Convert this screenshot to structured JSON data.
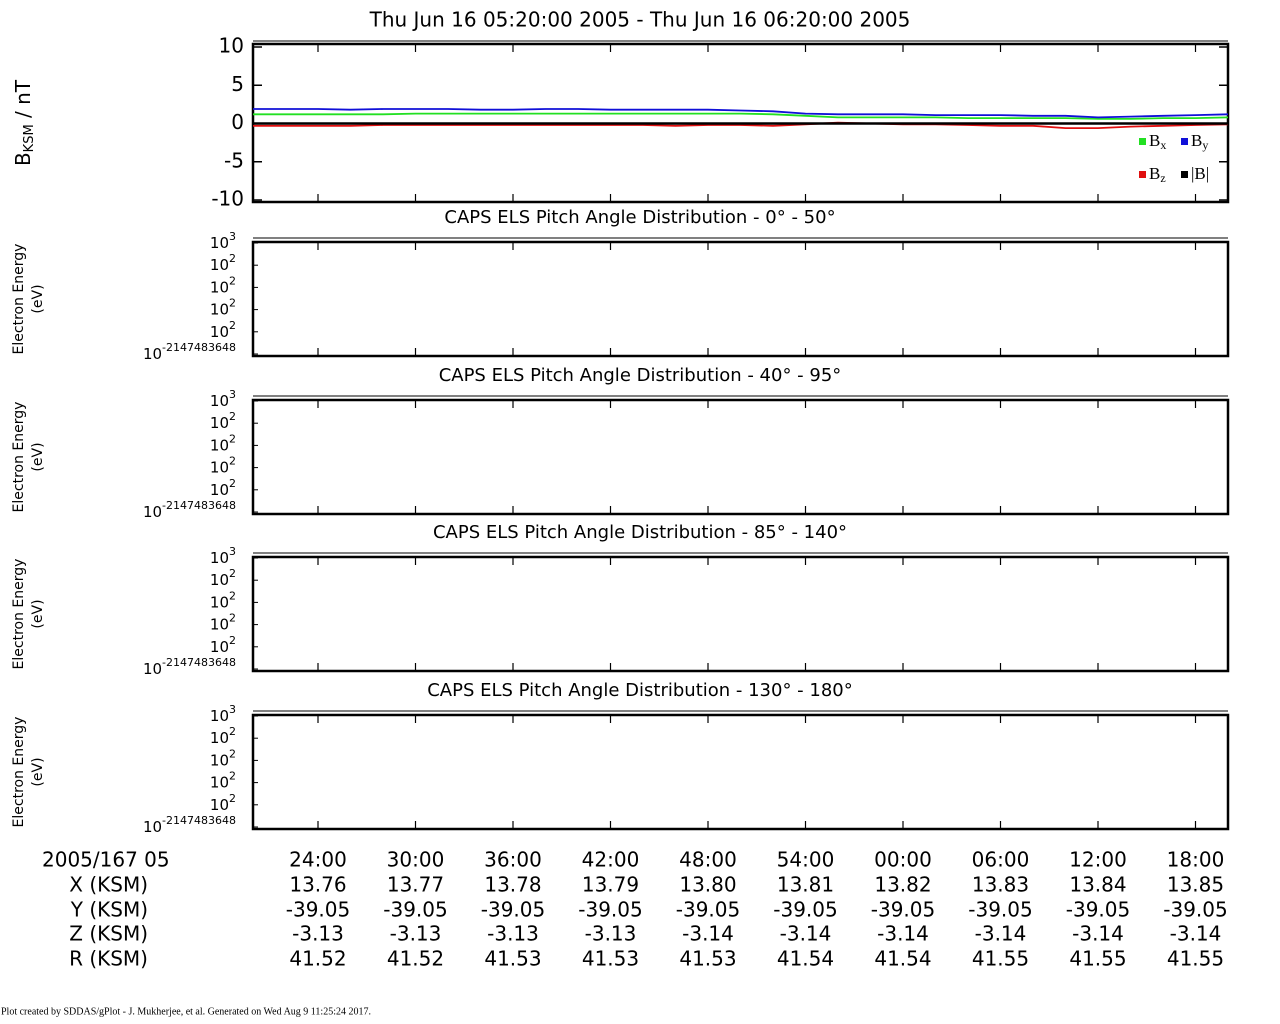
{
  "chart_data": {
    "type": "line",
    "title": "Thu Jun 16 05:20:00 2005 - Thu Jun 16 06:20:00 2005",
    "ylabel": {
      "main": "B",
      "sub": "KSM",
      "unit": " / nT"
    },
    "xlim": [
      20,
      80
    ],
    "xticks": [
      {
        "value": 24,
        "label": "24:00"
      },
      {
        "value": 30,
        "label": "30:00"
      },
      {
        "value": 36,
        "label": "36:00"
      },
      {
        "value": 42,
        "label": "42:00"
      },
      {
        "value": 48,
        "label": "48:00"
      },
      {
        "value": 54,
        "label": "54:00"
      },
      {
        "value": 60,
        "label": "00:00"
      },
      {
        "value": 66,
        "label": "06:00"
      },
      {
        "value": 72,
        "label": "12:00"
      },
      {
        "value": 78,
        "label": "18:00"
      }
    ],
    "ylim": [
      -10,
      10
    ],
    "yticks": [
      -10,
      -5,
      0,
      5,
      10
    ],
    "legend": "lower right",
    "x": [
      20,
      22,
      24,
      26,
      28,
      30,
      32,
      34,
      36,
      38,
      40,
      42,
      44,
      46,
      48,
      50,
      52,
      54,
      56,
      58,
      60,
      62,
      64,
      66,
      68,
      70,
      72,
      74,
      76,
      78,
      80
    ],
    "series": [
      {
        "name": "B",
        "sub": "x",
        "color": "#22e022",
        "values": [
          1.2,
          1.2,
          1.2,
          1.2,
          1.2,
          1.3,
          1.3,
          1.3,
          1.3,
          1.3,
          1.3,
          1.3,
          1.3,
          1.3,
          1.3,
          1.3,
          1.2,
          1.0,
          0.8,
          0.8,
          0.8,
          0.8,
          0.7,
          0.7,
          0.7,
          0.7,
          0.6,
          0.6,
          0.7,
          0.7,
          0.8
        ]
      },
      {
        "name": "B",
        "sub": "y",
        "color": "#1010d8",
        "values": [
          1.9,
          1.9,
          1.9,
          1.8,
          1.9,
          1.9,
          1.9,
          1.8,
          1.8,
          1.9,
          1.9,
          1.8,
          1.8,
          1.8,
          1.8,
          1.7,
          1.6,
          1.3,
          1.2,
          1.2,
          1.2,
          1.1,
          1.1,
          1.1,
          1.0,
          1.0,
          0.8,
          0.9,
          1.0,
          1.1,
          1.2
        ]
      },
      {
        "name": "B",
        "sub": "z",
        "color": "#e01010",
        "values": [
          -0.3,
          -0.3,
          -0.3,
          -0.3,
          -0.2,
          -0.2,
          -0.2,
          -0.2,
          -0.2,
          -0.2,
          -0.2,
          -0.2,
          -0.2,
          -0.3,
          -0.2,
          -0.2,
          -0.3,
          -0.1,
          0.1,
          0.0,
          -0.1,
          -0.1,
          -0.2,
          -0.3,
          -0.3,
          -0.6,
          -0.6,
          -0.4,
          -0.3,
          -0.2,
          -0.1
        ]
      },
      {
        "name": "|B|",
        "color": "#000000",
        "values": [
          0,
          0,
          0,
          0,
          0,
          0,
          0,
          0,
          0,
          0,
          0,
          0,
          0,
          0,
          0,
          0,
          0,
          0,
          0,
          0,
          0,
          0,
          0,
          0,
          0,
          0,
          0,
          0,
          0,
          0,
          0
        ]
      }
    ],
    "panels": [
      {
        "title": "CAPS ELS Pitch Angle Distribution - 0° - 50°",
        "ylabel": [
          "Electron Energy",
          "(eV)"
        ],
        "ytick_labels": [
          {
            "base": "10",
            "exp": "3"
          },
          {
            "base": "10",
            "exp": "2"
          },
          {
            "base": "10",
            "exp": "2"
          },
          {
            "base": "10",
            "exp": "2"
          },
          {
            "base": "10",
            "exp": "2"
          },
          {
            "base": "10",
            "exp": "-2147483648"
          }
        ]
      },
      {
        "title": "CAPS ELS Pitch Angle Distribution - 40° - 95°",
        "ylabel": [
          "Electron Energy",
          "(eV)"
        ],
        "ytick_labels": [
          {
            "base": "10",
            "exp": "3"
          },
          {
            "base": "10",
            "exp": "2"
          },
          {
            "base": "10",
            "exp": "2"
          },
          {
            "base": "10",
            "exp": "2"
          },
          {
            "base": "10",
            "exp": "2"
          },
          {
            "base": "10",
            "exp": "-2147483648"
          }
        ]
      },
      {
        "title": "CAPS ELS Pitch Angle Distribution - 85° - 140°",
        "ylabel": [
          "Electron Energy",
          "(eV)"
        ],
        "ytick_labels": [
          {
            "base": "10",
            "exp": "3"
          },
          {
            "base": "10",
            "exp": "2"
          },
          {
            "base": "10",
            "exp": "2"
          },
          {
            "base": "10",
            "exp": "2"
          },
          {
            "base": "10",
            "exp": "2"
          },
          {
            "base": "10",
            "exp": "-2147483648"
          }
        ]
      },
      {
        "title": "CAPS ELS Pitch Angle Distribution - 130° - 180°",
        "ylabel": [
          "Electron Energy",
          "(eV)"
        ],
        "ytick_labels": [
          {
            "base": "10",
            "exp": "3"
          },
          {
            "base": "10",
            "exp": "2"
          },
          {
            "base": "10",
            "exp": "2"
          },
          {
            "base": "10",
            "exp": "2"
          },
          {
            "base": "10",
            "exp": "2"
          },
          {
            "base": "10",
            "exp": "-2147483648"
          }
        ]
      }
    ],
    "x_header": "2005/167 05",
    "ephemeris": [
      {
        "label": "X (KSM)",
        "values": [
          "13.76",
          "13.77",
          "13.78",
          "13.79",
          "13.80",
          "13.81",
          "13.82",
          "13.83",
          "13.84",
          "13.85"
        ]
      },
      {
        "label": "Y (KSM)",
        "values": [
          "-39.05",
          "-39.05",
          "-39.05",
          "-39.05",
          "-39.05",
          "-39.05",
          "-39.05",
          "-39.05",
          "-39.05",
          "-39.05"
        ]
      },
      {
        "label": "Z (KSM)",
        "values": [
          "-3.13",
          "-3.13",
          "-3.13",
          "-3.13",
          "-3.14",
          "-3.14",
          "-3.14",
          "-3.14",
          "-3.14",
          "-3.14"
        ]
      },
      {
        "label": "R (KSM)",
        "values": [
          "41.52",
          "41.52",
          "41.53",
          "41.53",
          "41.53",
          "41.54",
          "41.54",
          "41.55",
          "41.55",
          "41.55"
        ]
      }
    ],
    "footer": "Plot created by SDDAS/gPlot - J. Mukherjee, et al.  Generated on Wed Aug 9 11:25:24 2017."
  }
}
